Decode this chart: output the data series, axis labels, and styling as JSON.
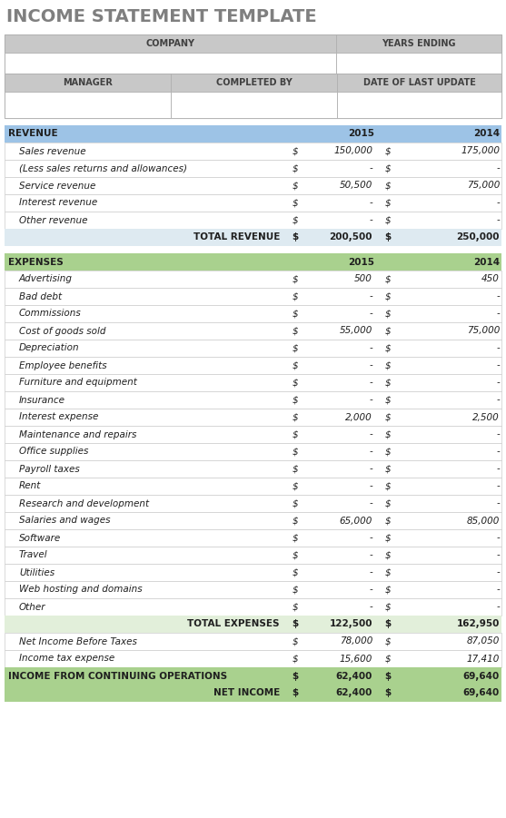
{
  "title": "INCOME STATEMENT TEMPLATE",
  "title_color": "#7f7f7f",
  "bg_color": "#ffffff",
  "header_bg": "#c8c8c8",
  "revenue_header_bg": "#9dc3e6",
  "revenue_total_bg": "#deeaf1",
  "expenses_header_bg": "#a9d18e",
  "expenses_total_bg": "#e2efda",
  "income_ops_bg": "#a9d18e",
  "net_income_bg": "#a9d18e",
  "border_color": "#b0b0b0",
  "header_text_color": "#404040",
  "revenue_rows": [
    [
      "Sales revenue",
      "$",
      "150,000",
      "$",
      "175,000"
    ],
    [
      "(Less sales returns and allowances)",
      "$",
      "-",
      "$",
      "-"
    ],
    [
      "Service revenue",
      "$",
      "50,500",
      "$",
      "75,000"
    ],
    [
      "Interest revenue",
      "$",
      "-",
      "$",
      "-"
    ],
    [
      "Other revenue",
      "$",
      "-",
      "$",
      "-"
    ]
  ],
  "revenue_total": [
    "TOTAL REVENUE",
    "$",
    "200,500",
    "$",
    "250,000"
  ],
  "expenses_rows": [
    [
      "Advertising",
      "$",
      "500",
      "$",
      "450"
    ],
    [
      "Bad debt",
      "$",
      "-",
      "$",
      "-"
    ],
    [
      "Commissions",
      "$",
      "-",
      "$",
      "-"
    ],
    [
      "Cost of goods sold",
      "$",
      "55,000",
      "$",
      "75,000"
    ],
    [
      "Depreciation",
      "$",
      "-",
      "$",
      "-"
    ],
    [
      "Employee benefits",
      "$",
      "-",
      "$",
      "-"
    ],
    [
      "Furniture and equipment",
      "$",
      "-",
      "$",
      "-"
    ],
    [
      "Insurance",
      "$",
      "-",
      "$",
      "-"
    ],
    [
      "Interest expense",
      "$",
      "2,000",
      "$",
      "2,500"
    ],
    [
      "Maintenance and repairs",
      "$",
      "-",
      "$",
      "-"
    ],
    [
      "Office supplies",
      "$",
      "-",
      "$",
      "-"
    ],
    [
      "Payroll taxes",
      "$",
      "-",
      "$",
      "-"
    ],
    [
      "Rent",
      "$",
      "-",
      "$",
      "-"
    ],
    [
      "Research and development",
      "$",
      "-",
      "$",
      "-"
    ],
    [
      "Salaries and wages",
      "$",
      "65,000",
      "$",
      "85,000"
    ],
    [
      "Software",
      "$",
      "-",
      "$",
      "-"
    ],
    [
      "Travel",
      "$",
      "-",
      "$",
      "-"
    ],
    [
      "Utilities",
      "$",
      "-",
      "$",
      "-"
    ],
    [
      "Web hosting and domains",
      "$",
      "-",
      "$",
      "-"
    ],
    [
      "Other",
      "$",
      "-",
      "$",
      "-"
    ]
  ],
  "expenses_total": [
    "TOTAL EXPENSES",
    "$",
    "122,500",
    "$",
    "162,950"
  ],
  "below_expenses_rows": [
    [
      "Net Income Before Taxes",
      "$",
      "78,000",
      "$",
      "87,050"
    ],
    [
      "Income tax expense",
      "$",
      "15,600",
      "$",
      "17,410"
    ]
  ],
  "income_ops": [
    "INCOME FROM CONTINUING OPERATIONS",
    "$",
    "62,400",
    "$",
    "69,640"
  ],
  "net_income": [
    "NET INCOME",
    "$",
    "62,400",
    "$",
    "69,640"
  ]
}
